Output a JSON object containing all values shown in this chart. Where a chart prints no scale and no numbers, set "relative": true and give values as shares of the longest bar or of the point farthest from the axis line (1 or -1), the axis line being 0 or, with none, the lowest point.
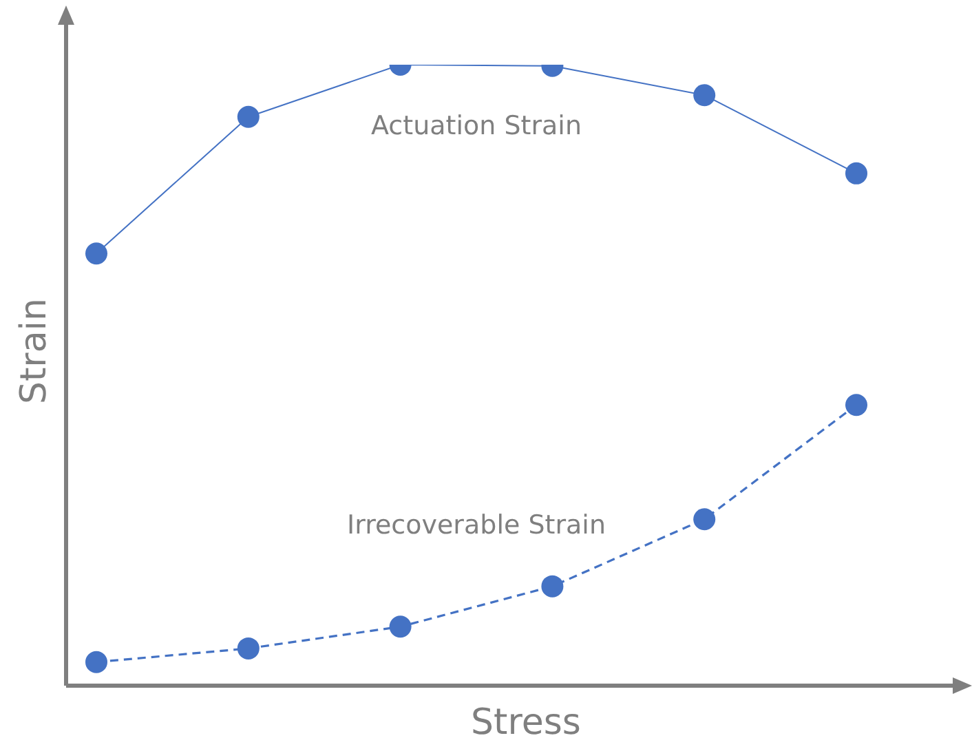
{
  "chart_data": {
    "type": "line",
    "relative": true,
    "xlabel": "Stress",
    "ylabel": "Strain",
    "categories": [
      null,
      null,
      null,
      null,
      null,
      null
    ],
    "marker": "circle",
    "legend": false,
    "series": [
      {
        "name": "Actuation Strain",
        "color": "#4472c4",
        "line_style": "solid",
        "values": [
          0.696,
          0.916,
          1,
          0.998,
          0.951,
          0.825
        ]
      },
      {
        "name": "Irrecoverable Strain",
        "color": "#4472c4",
        "line_style": "dashed",
        "values": [
          0.038,
          0.06,
          0.095,
          0.16,
          0.268,
          0.452
        ]
      }
    ]
  }
}
